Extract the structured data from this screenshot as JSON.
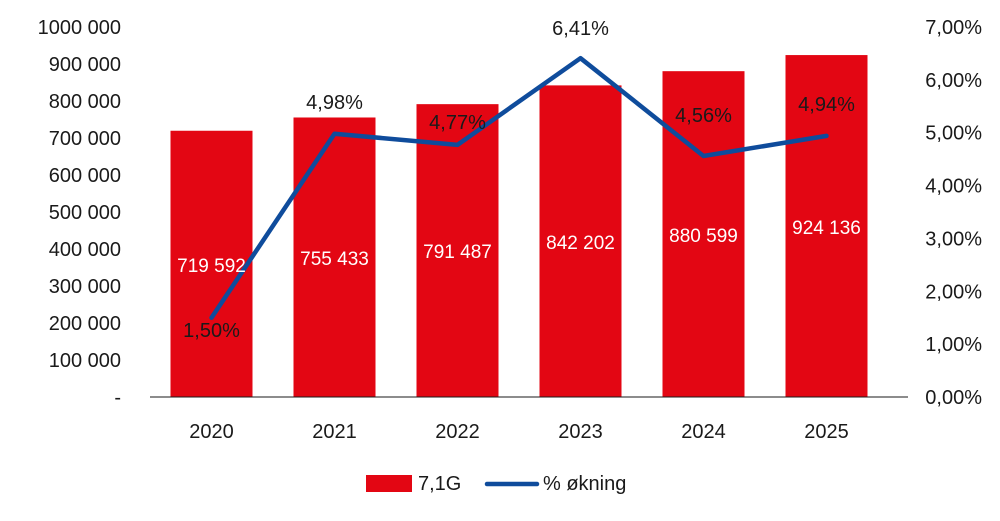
{
  "chart_data": {
    "type": "bar",
    "categories": [
      "2020",
      "2021",
      "2022",
      "2023",
      "2024",
      "2025"
    ],
    "series": [
      {
        "name": "7,1G",
        "type": "bar",
        "axis": "left",
        "values": [
          719592,
          755433,
          791487,
          842202,
          880599,
          924136
        ]
      },
      {
        "name": "% økning",
        "type": "line",
        "axis": "right",
        "values": [
          1.5,
          4.98,
          4.77,
          6.41,
          4.56,
          4.94
        ]
      }
    ],
    "bar_labels": [
      "719 592",
      "755 433",
      "791 487",
      "842 202",
      "880 599",
      "924 136"
    ],
    "line_labels": [
      "1,50%",
      "4,98%",
      "4,77%",
      "6,41%",
      "4,56%",
      "4,94%"
    ],
    "y_left": {
      "lim": [
        0,
        1000000
      ],
      "ticks": [
        "-",
        "100 000",
        "200 000",
        "300 000",
        "400 000",
        "500 000",
        "600 000",
        "700 000",
        "800 000",
        "900 000",
        "1000 000"
      ]
    },
    "y_right": {
      "lim": [
        0,
        7
      ],
      "ticks": [
        "0,00%",
        "1,00%",
        "2,00%",
        "3,00%",
        "4,00%",
        "5,00%",
        "6,00%",
        "7,00%"
      ]
    },
    "grid": false,
    "legend_position": "bottom-center",
    "colors": {
      "bar": "#e30613",
      "line": "#0f4c9c"
    }
  }
}
